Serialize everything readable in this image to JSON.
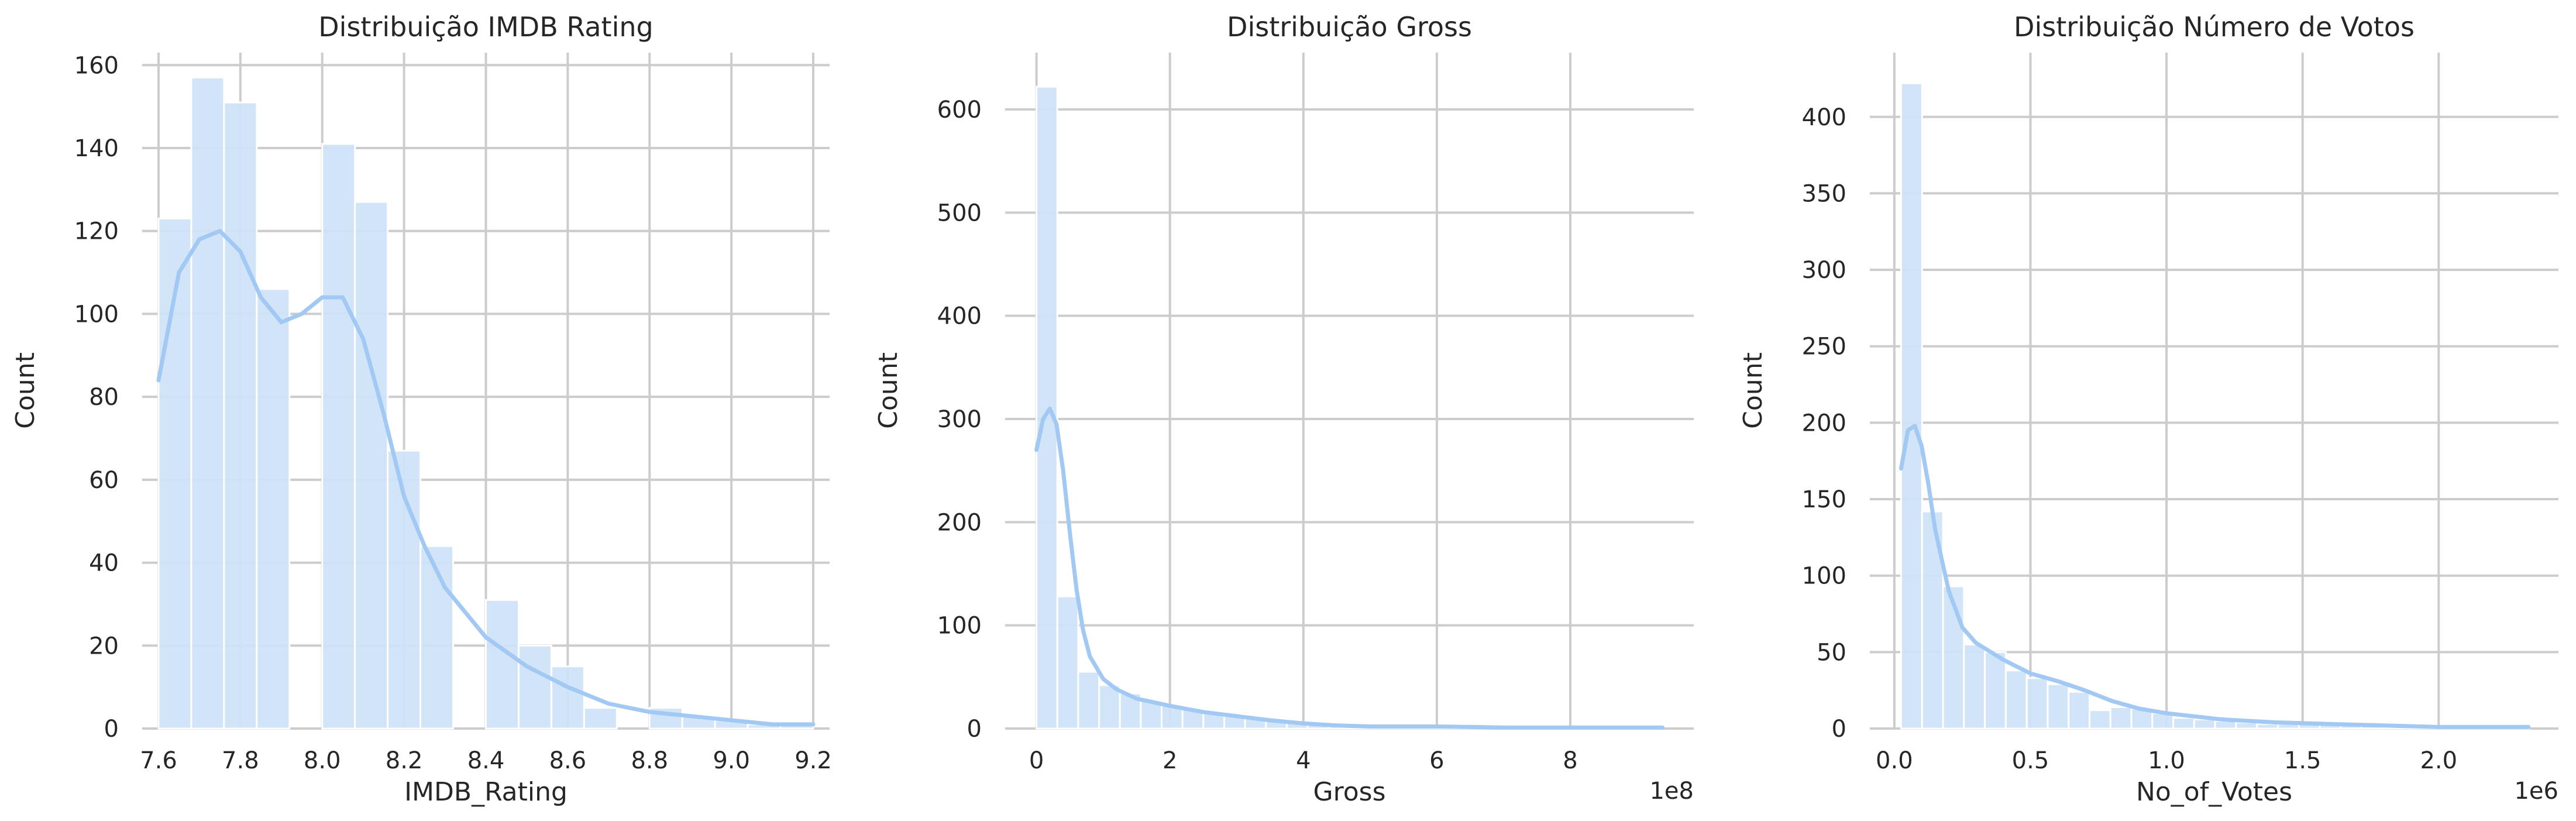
{
  "figure": {
    "background": "#ffffff"
  },
  "colors": {
    "bar": "#cfe2f8",
    "bar_edge": "#ffffff",
    "kde": "#a1c9f4",
    "grid": "#cccccc",
    "text": "#262626"
  },
  "chart_data": [
    {
      "type": "bar",
      "title": "Distribuição IMDB Rating",
      "xlabel": "IMDB_Rating",
      "ylabel": "Count",
      "xlim": [
        7.56,
        9.24
      ],
      "ylim": [
        0,
        163
      ],
      "xticks": [
        7.6,
        7.8,
        8.0,
        8.2,
        8.4,
        8.6,
        8.8,
        9.0,
        9.2
      ],
      "xticklabels": [
        "7.6",
        "7.8",
        "8.0",
        "8.2",
        "8.4",
        "8.6",
        "8.8",
        "9.0",
        "9.2"
      ],
      "yticks": [
        0,
        20,
        40,
        60,
        80,
        100,
        120,
        140,
        160
      ],
      "yticklabels": [
        "0",
        "20",
        "40",
        "60",
        "80",
        "100",
        "120",
        "140",
        "160"
      ],
      "offset_text": "",
      "grid": true,
      "bin_edges": [
        7.6,
        7.68,
        7.76,
        7.84,
        7.92,
        8.0,
        8.08,
        8.16,
        8.24,
        8.32,
        8.4,
        8.48,
        8.56,
        8.64,
        8.72,
        8.8,
        8.88,
        8.96,
        9.04,
        9.12,
        9.2
      ],
      "counts": [
        123,
        157,
        151,
        106,
        0,
        141,
        127,
        67,
        44,
        0,
        31,
        20,
        15,
        5,
        0,
        5,
        3,
        2,
        1,
        1
      ],
      "kde": {
        "x": [
          7.6,
          7.65,
          7.7,
          7.75,
          7.8,
          7.85,
          7.9,
          7.95,
          8.0,
          8.05,
          8.1,
          8.15,
          8.2,
          8.25,
          8.3,
          8.4,
          8.5,
          8.6,
          8.7,
          8.8,
          8.9,
          9.0,
          9.1,
          9.2
        ],
        "y": [
          84,
          110,
          118,
          120,
          115,
          104,
          98,
          100,
          104,
          104,
          94,
          76,
          56,
          44,
          34,
          22,
          15,
          10,
          6,
          4,
          3,
          2,
          1,
          1
        ]
      }
    },
    {
      "type": "bar",
      "title": "Distribuição Gross",
      "xlabel": "Gross",
      "ylabel": "Count",
      "xlim": [
        -0.47,
        9.85
      ],
      "ylim": [
        0,
        655
      ],
      "xticks": [
        0,
        2,
        4,
        6,
        8
      ],
      "xticklabels": [
        "0",
        "2",
        "4",
        "6",
        "8"
      ],
      "yticks": [
        0,
        100,
        200,
        300,
        400,
        500,
        600
      ],
      "yticklabels": [
        "0",
        "100",
        "200",
        "300",
        "400",
        "500",
        "600"
      ],
      "offset_text": "1e8",
      "grid": true,
      "bin_edges": [
        0.0,
        0.3126,
        0.6252,
        0.9378,
        1.2504,
        1.563,
        1.8756,
        2.1882,
        2.5008,
        2.8134,
        3.126,
        3.4386,
        3.7512,
        4.0638,
        4.3764,
        4.689,
        5.0016,
        5.3142,
        5.6268,
        5.9394,
        6.252,
        6.5646,
        6.8772,
        7.1898,
        7.5024,
        7.815,
        8.1276,
        8.4402,
        8.7528,
        9.0654,
        9.378
      ],
      "counts": [
        622,
        128,
        55,
        42,
        34,
        27,
        23,
        19,
        15,
        12,
        11,
        8,
        6,
        5,
        4,
        3,
        2,
        2,
        2,
        2,
        2,
        1,
        1,
        1,
        1,
        1,
        1,
        1,
        1,
        1
      ],
      "kde": {
        "x": [
          0,
          0.1,
          0.2,
          0.3,
          0.4,
          0.5,
          0.6,
          0.7,
          0.8,
          1.0,
          1.2,
          1.5,
          2.0,
          2.5,
          3.0,
          3.5,
          4.0,
          4.5,
          5.0,
          6.0,
          7.0,
          8.0,
          9.0,
          9.38
        ],
        "y": [
          270,
          300,
          310,
          295,
          250,
          190,
          135,
          95,
          70,
          48,
          38,
          29,
          22,
          16,
          12,
          8,
          5,
          3,
          2,
          2,
          1,
          1,
          1,
          1
        ]
      }
    },
    {
      "type": "bar",
      "title": "Distribuição Número de Votos",
      "xlabel": "No_of_Votes",
      "ylabel": "Count",
      "xlim": [
        -0.09,
        2.44
      ],
      "ylim": [
        0,
        442
      ],
      "xticks": [
        0.0,
        0.5,
        1.0,
        1.5,
        2.0
      ],
      "xticklabels": [
        "0.0",
        "0.5",
        "1.0",
        "1.5",
        "2.0"
      ],
      "yticks": [
        0,
        50,
        100,
        150,
        200,
        250,
        300,
        350,
        400
      ],
      "yticklabels": [
        "0",
        "50",
        "100",
        "150",
        "200",
        "250",
        "300",
        "350",
        "400"
      ],
      "offset_text": "1e6",
      "grid": true,
      "bin_edges": [
        0.025,
        0.1019,
        0.1788,
        0.2557,
        0.3326,
        0.4095,
        0.4864,
        0.5633,
        0.6402,
        0.7171,
        0.794,
        0.8709,
        0.9478,
        1.0247,
        1.1016,
        1.1785,
        1.2554,
        1.3323,
        1.4092,
        1.4861,
        1.563,
        1.6399,
        1.7168,
        1.7937,
        1.8706,
        1.9475,
        2.0244,
        2.1013,
        2.1782,
        2.2551,
        2.332
      ],
      "counts": [
        422,
        142,
        93,
        55,
        50,
        38,
        33,
        29,
        24,
        12,
        14,
        13,
        10,
        7,
        6,
        5,
        4,
        3,
        3,
        3,
        3,
        2,
        2,
        1,
        1,
        1,
        1,
        1,
        1,
        1
      ],
      "kde": {
        "x": [
          0.025,
          0.05,
          0.075,
          0.1,
          0.125,
          0.15,
          0.2,
          0.25,
          0.3,
          0.4,
          0.5,
          0.6,
          0.7,
          0.8,
          0.9,
          1.0,
          1.2,
          1.4,
          1.6,
          1.8,
          2.0,
          2.2,
          2.33
        ],
        "y": [
          170,
          195,
          198,
          185,
          160,
          130,
          90,
          66,
          56,
          45,
          36,
          31,
          25,
          18,
          13,
          10,
          6,
          4,
          3,
          2,
          1,
          1,
          1
        ]
      }
    }
  ]
}
